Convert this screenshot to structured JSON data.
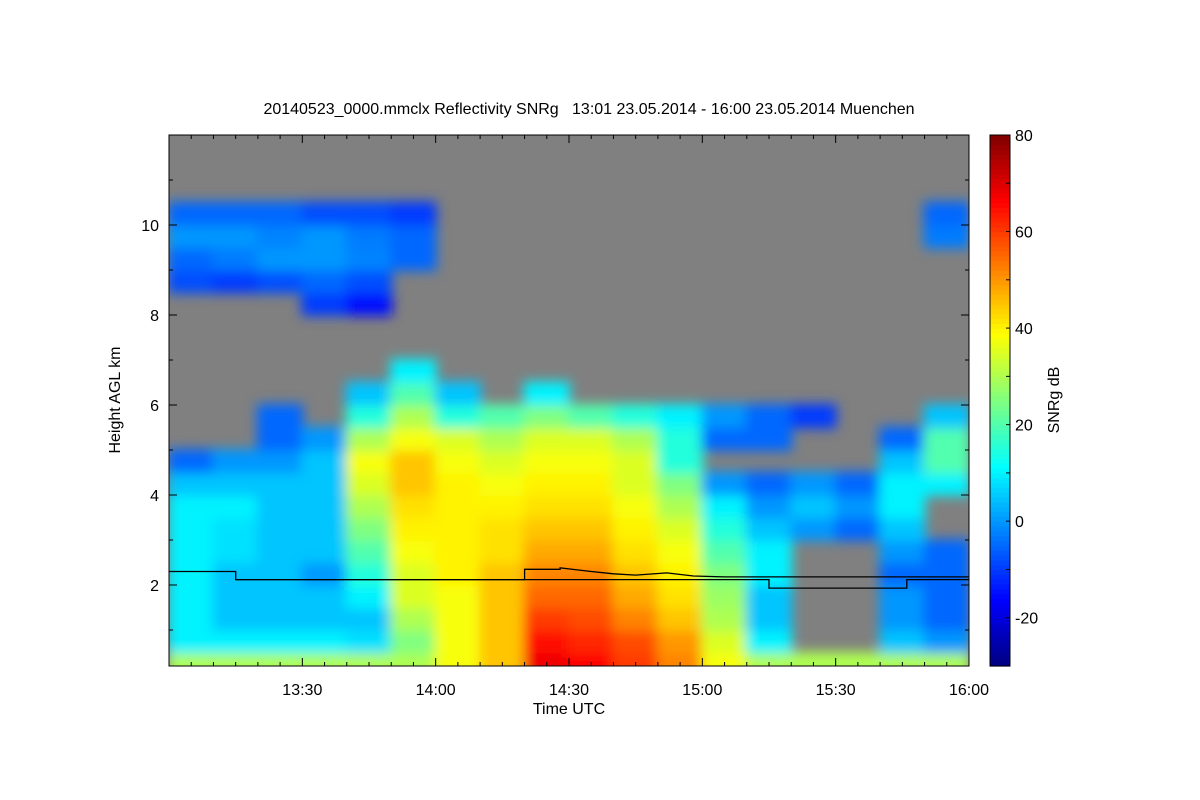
{
  "chart_data": {
    "type": "heatmap",
    "title": "20140523_0000.mmclx Reflectivity SNRg   13:01 23.05.2014 - 16:00 23.05.2014 Muenchen",
    "xlabel": "Time UTC",
    "ylabel": "Height AGL km",
    "colorbar_label": "SNRg dB",
    "x_range_minutes_after_1300": [
      0,
      180
    ],
    "x_ticks": [
      {
        "min": 30,
        "label": "13:30"
      },
      {
        "min": 60,
        "label": "14:00"
      },
      {
        "min": 90,
        "label": "14:30"
      },
      {
        "min": 120,
        "label": "15:00"
      },
      {
        "min": 150,
        "label": "15:30"
      },
      {
        "min": 180,
        "label": "16:00"
      }
    ],
    "y_range_km": [
      0.2,
      12
    ],
    "y_ticks": [
      {
        "v": 2,
        "label": "2"
      },
      {
        "v": 4,
        "label": "4"
      },
      {
        "v": 6,
        "label": "6"
      },
      {
        "v": 8,
        "label": "8"
      },
      {
        "v": 10,
        "label": "10"
      }
    ],
    "color_range_db": [
      -30,
      80
    ],
    "colorbar_ticks": [
      {
        "v": -20,
        "label": "-20"
      },
      {
        "v": 0,
        "label": "0"
      },
      {
        "v": 20,
        "label": "20"
      },
      {
        "v": 40,
        "label": "40"
      },
      {
        "v": 60,
        "label": "60"
      },
      {
        "v": 80,
        "label": "80"
      }
    ],
    "no_data_color": "#808080",
    "colormap": "jet",
    "time_bin_minutes": 10,
    "height_bin_km": 0.5,
    "heights_km": [
      0.25,
      0.75,
      1.25,
      1.75,
      2.25,
      2.75,
      3.25,
      3.75,
      4.25,
      4.75,
      5.25,
      5.75,
      6.25,
      6.75,
      7.25,
      7.75,
      8.25,
      8.75,
      9.25,
      9.75,
      10.25,
      10.75,
      11.25,
      11.75
    ],
    "z_db": [
      [
        30,
        30,
        30,
        30,
        30,
        30,
        38,
        45,
        68,
        66,
        60,
        52,
        38,
        30,
        30,
        30,
        30,
        30
      ],
      [
        10,
        10,
        10,
        10,
        8,
        25,
        38,
        45,
        65,
        62,
        58,
        50,
        35,
        10,
        null,
        null,
        5,
        0
      ],
      [
        10,
        5,
        5,
        5,
        5,
        30,
        38,
        45,
        60,
        58,
        52,
        45,
        30,
        5,
        null,
        null,
        0,
        -5
      ],
      [
        10,
        5,
        5,
        5,
        10,
        35,
        38,
        45,
        55,
        55,
        48,
        42,
        28,
        5,
        null,
        null,
        0,
        -5
      ],
      [
        10,
        5,
        5,
        0,
        15,
        35,
        40,
        45,
        52,
        52,
        45,
        40,
        25,
        10,
        null,
        null,
        -5,
        -5
      ],
      [
        10,
        8,
        5,
        5,
        20,
        38,
        40,
        42,
        48,
        48,
        42,
        38,
        20,
        10,
        null,
        null,
        0,
        -5
      ],
      [
        10,
        8,
        5,
        5,
        25,
        40,
        40,
        42,
        45,
        45,
        40,
        35,
        15,
        5,
        0,
        -5,
        5,
        null
      ],
      [
        10,
        10,
        5,
        5,
        30,
        42,
        40,
        40,
        42,
        42,
        38,
        30,
        10,
        0,
        5,
        0,
        10,
        null
      ],
      [
        5,
        5,
        5,
        5,
        35,
        45,
        40,
        38,
        40,
        40,
        35,
        25,
        0,
        -5,
        0,
        -5,
        10,
        10
      ],
      [
        -5,
        0,
        0,
        5,
        38,
        45,
        38,
        35,
        38,
        38,
        35,
        15,
        null,
        null,
        null,
        null,
        5,
        20
      ],
      [
        null,
        null,
        -5,
        0,
        30,
        38,
        35,
        30,
        35,
        35,
        30,
        15,
        -5,
        -5,
        null,
        null,
        -5,
        20
      ],
      [
        null,
        null,
        -5,
        null,
        15,
        30,
        15,
        20,
        25,
        20,
        15,
        10,
        0,
        -5,
        -10,
        null,
        null,
        5
      ],
      [
        null,
        null,
        null,
        null,
        5,
        20,
        5,
        null,
        10,
        null,
        null,
        null,
        null,
        null,
        null,
        null,
        null,
        null
      ],
      [
        null,
        null,
        null,
        null,
        null,
        10,
        null,
        null,
        null,
        null,
        null,
        null,
        null,
        null,
        null,
        null,
        null,
        null
      ],
      [
        null,
        null,
        null,
        null,
        null,
        null,
        null,
        null,
        null,
        null,
        null,
        null,
        null,
        null,
        null,
        null,
        null,
        null
      ],
      [
        null,
        null,
        null,
        null,
        null,
        null,
        null,
        null,
        null,
        null,
        null,
        null,
        null,
        null,
        null,
        null,
        null,
        null
      ],
      [
        null,
        null,
        null,
        -10,
        -15,
        null,
        null,
        null,
        null,
        null,
        null,
        null,
        null,
        null,
        null,
        null,
        null,
        null
      ],
      [
        -8,
        -10,
        -8,
        -5,
        -8,
        null,
        null,
        null,
        null,
        null,
        null,
        null,
        null,
        null,
        null,
        null,
        null,
        null
      ],
      [
        -5,
        -3,
        0,
        0,
        -2,
        -5,
        null,
        null,
        null,
        null,
        null,
        null,
        null,
        null,
        null,
        null,
        null,
        null
      ],
      [
        0,
        0,
        -2,
        0,
        -3,
        -5,
        null,
        null,
        null,
        null,
        null,
        null,
        null,
        null,
        null,
        null,
        null,
        -3
      ],
      [
        -5,
        -5,
        -5,
        -8,
        -8,
        -10,
        null,
        null,
        null,
        null,
        null,
        null,
        null,
        null,
        null,
        null,
        null,
        -5
      ],
      [
        null,
        null,
        null,
        null,
        null,
        null,
        null,
        null,
        null,
        null,
        null,
        null,
        null,
        null,
        null,
        null,
        null,
        null
      ],
      [
        null,
        null,
        null,
        null,
        null,
        null,
        null,
        null,
        null,
        null,
        null,
        null,
        null,
        null,
        null,
        null,
        null,
        null
      ],
      [
        null,
        null,
        null,
        null,
        null,
        null,
        null,
        null,
        null,
        null,
        null,
        null,
        null,
        null,
        null,
        null,
        null,
        null
      ]
    ],
    "lines": [
      {
        "name": "upper-layer-height",
        "color": "#000000",
        "points": [
          [
            0,
            2.3
          ],
          [
            15,
            2.3
          ],
          [
            15,
            2.12
          ],
          [
            80,
            2.12
          ],
          [
            80,
            2.35
          ],
          [
            88,
            2.35
          ],
          [
            88,
            2.38
          ],
          [
            95,
            2.3
          ],
          [
            100,
            2.25
          ],
          [
            105,
            2.22
          ],
          [
            112,
            2.27
          ],
          [
            118,
            2.2
          ],
          [
            125,
            2.18
          ],
          [
            180,
            2.18
          ]
        ]
      },
      {
        "name": "lower-layer-height",
        "color": "#000000",
        "points": [
          [
            15,
            2.12
          ],
          [
            135,
            2.12
          ],
          [
            135,
            1.93
          ],
          [
            166,
            1.93
          ],
          [
            166,
            2.12
          ],
          [
            180,
            2.12
          ]
        ]
      }
    ]
  }
}
